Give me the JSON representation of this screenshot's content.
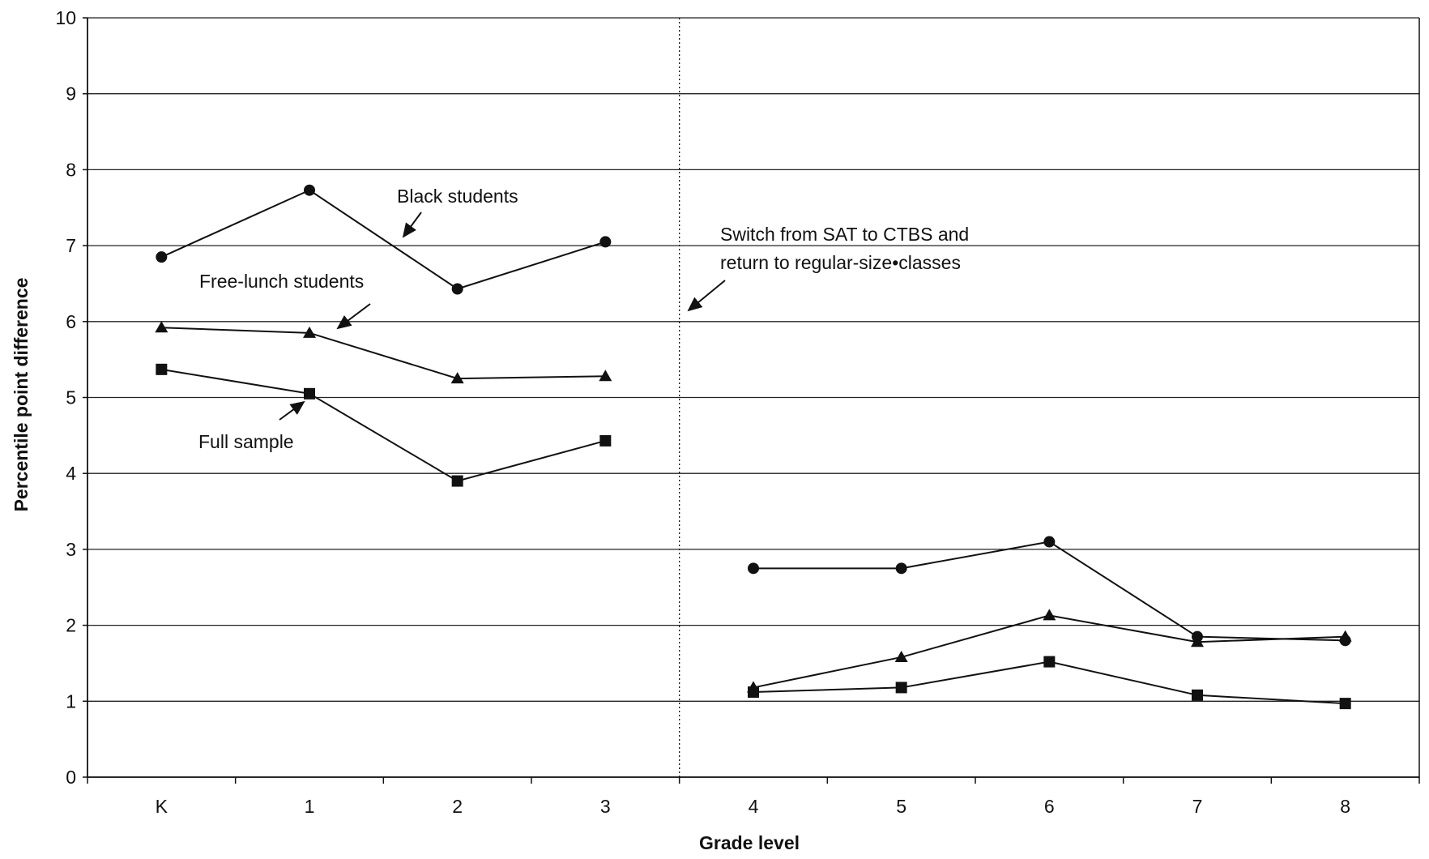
{
  "chart_data": {
    "type": "line",
    "xlabel": "Grade level",
    "ylabel": "Percentile point difference",
    "categories": [
      "K",
      "1",
      "2",
      "3",
      "4",
      "5",
      "6",
      "7",
      "8"
    ],
    "ylim": [
      0,
      10
    ],
    "yticks": [
      "0",
      "1",
      "2",
      "3",
      "4",
      "5",
      "6",
      "7",
      "8",
      "9",
      "10"
    ],
    "grid": "horizontal",
    "series": [
      {
        "name": "Black students",
        "marker": "circle",
        "segments": [
          {
            "categories": [
              "K",
              "1",
              "2",
              "3"
            ],
            "values": [
              6.85,
              7.73,
              6.43,
              7.05
            ]
          },
          {
            "categories": [
              "4",
              "5",
              "6",
              "7",
              "8"
            ],
            "values": [
              2.75,
              2.75,
              3.1,
              1.85,
              1.8
            ]
          }
        ]
      },
      {
        "name": "Free-lunch students",
        "marker": "triangle",
        "segments": [
          {
            "categories": [
              "K",
              "1",
              "2",
              "3"
            ],
            "values": [
              5.92,
              5.85,
              5.25,
              5.28
            ]
          },
          {
            "categories": [
              "4",
              "5",
              "6",
              "7",
              "8"
            ],
            "values": [
              1.18,
              1.58,
              2.13,
              1.78,
              1.85
            ]
          }
        ]
      },
      {
        "name": "Full sample",
        "marker": "square",
        "segments": [
          {
            "categories": [
              "K",
              "1",
              "2",
              "3"
            ],
            "values": [
              5.37,
              5.05,
              3.9,
              4.43
            ]
          },
          {
            "categories": [
              "4",
              "5",
              "6",
              "7",
              "8"
            ],
            "values": [
              1.12,
              1.18,
              1.52,
              1.08,
              0.97
            ]
          }
        ]
      }
    ],
    "annotations": {
      "black_students": "Black students",
      "free_lunch": "Free-lunch students",
      "full_sample": "Full sample",
      "switch_line1": "Switch from SAT to CTBS and",
      "switch_line2": "return to regular-size•classes"
    },
    "divider": {
      "between": [
        "3",
        "4"
      ],
      "style": "dotted"
    }
  }
}
